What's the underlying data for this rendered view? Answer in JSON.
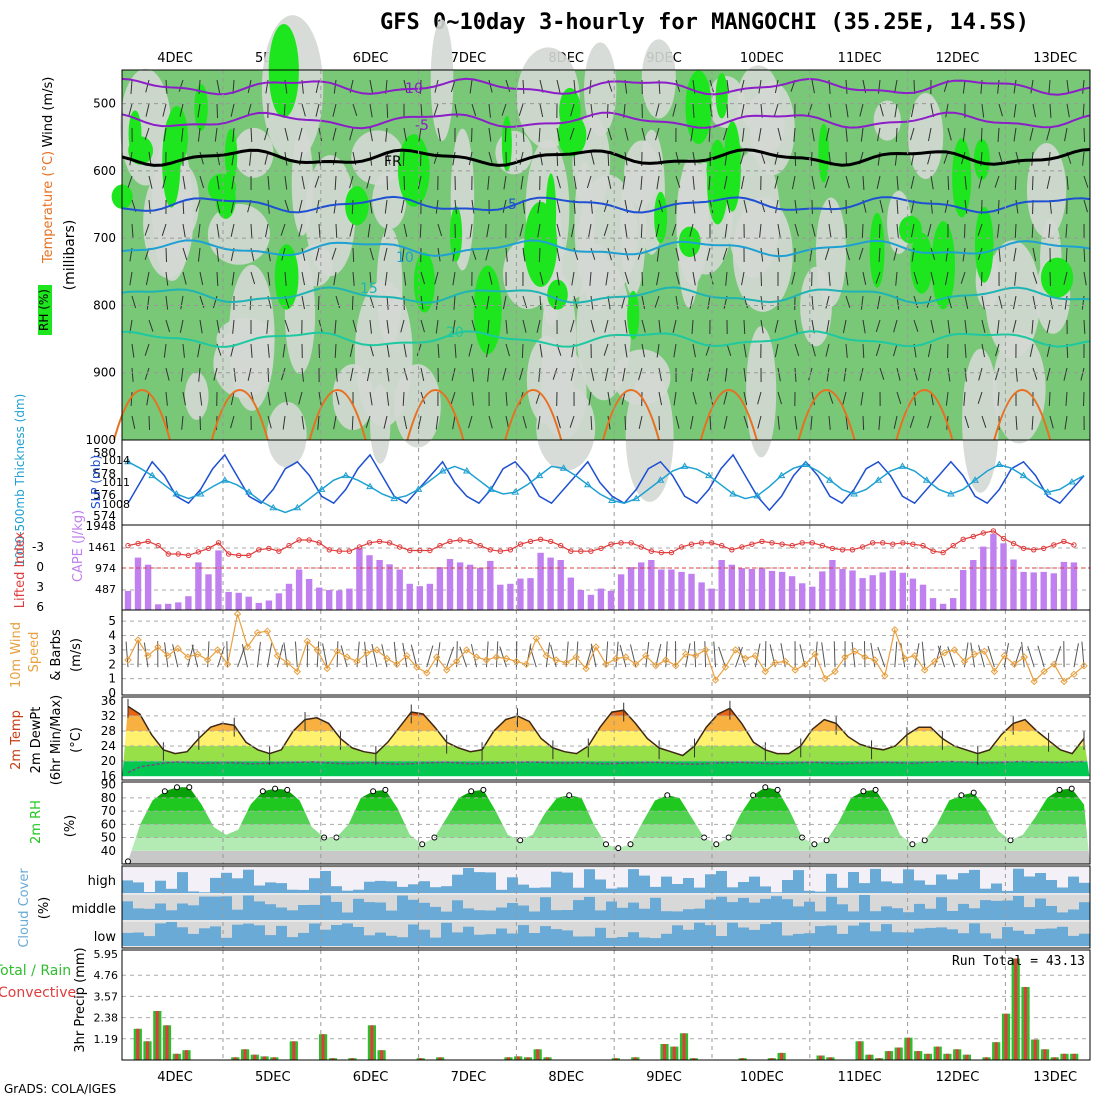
{
  "page": {
    "title": "GFS 0~10day 3-hourly for MANGOCHI (35.25E, 14.5S)",
    "credit": "GrADS: COLA/IGES"
  },
  "time_axis": {
    "labels": [
      "4DEC",
      "5DEC",
      "6DEC",
      "7DEC",
      "8DEC",
      "9DEC",
      "10DEC",
      "11DEC",
      "12DEC",
      "13DEC"
    ]
  },
  "colors": {
    "rh_light": "#d4d8d4",
    "rh_mid": "#78c878",
    "rh_bright": "#1ee61e",
    "temp_warm": "#e87020",
    "temp_blue": "#1e50d2",
    "temp_cyan": "#1ea0d2",
    "freeze": "#000000",
    "cold": "#8c1ec8",
    "cape": "#c080f0",
    "li": "#e03c3c",
    "wind10": "#e8a040",
    "rh2m": "#1ec81e",
    "cloud": "#6aaad6",
    "precip_total": "#2ebd2e",
    "precip_conv": "#e03c3c"
  },
  "chart_data": [
    {
      "type": "area",
      "panel": "upper-air",
      "ylabels": [
        "Wind (m/s)",
        "Temperature (°C)",
        "RH (%)",
        "(millibars)"
      ],
      "yticks": [
        500,
        600,
        700,
        800,
        900,
        1000
      ],
      "ylim": [
        450,
        1000
      ],
      "isotherm_labels": [
        "-10",
        "-5",
        "FR",
        "5",
        "10",
        "15",
        "20"
      ],
      "isotherms": [
        {
          "label": "-10",
          "p": 475
        },
        {
          "label": "-5",
          "p": 525
        },
        {
          "label": "FR",
          "p": 580
        },
        {
          "label": "5",
          "p": 650
        },
        {
          "label": "10",
          "p": 715
        },
        {
          "label": "15",
          "p": 785
        },
        {
          "label": "20",
          "p": 850
        }
      ]
    },
    {
      "type": "line",
      "panel": "slp-thickness",
      "ylabel_left": "1000-500mb Thickness (dm)",
      "ylabel_right": "SLP (mb)",
      "left_ticks": [
        "580",
        "578",
        "576",
        "574"
      ],
      "right_ticks": [
        "1014",
        "1011",
        "1008"
      ],
      "corner_labels": [
        "1948"
      ],
      "series": [
        {
          "values": [
            1008,
            1011,
            1014,
            1012,
            1009,
            1008,
            1010,
            1013,
            1015,
            1012,
            1009,
            1008,
            1010,
            1013,
            1014,
            1012,
            1009,
            1008,
            1010,
            1013,
            1015,
            1012,
            1009,
            1008,
            1010,
            1012,
            1014,
            1011,
            1009,
            1008,
            1010,
            1013,
            1014,
            1012,
            1009,
            1008,
            1010,
            1012,
            1014,
            1011,
            1009,
            1008,
            1010,
            1013,
            1014,
            1012,
            1009,
            1008,
            1010,
            1013,
            1015,
            1012,
            1009,
            1007,
            1009,
            1012,
            1014,
            1012,
            1009,
            1008,
            1010,
            1013,
            1014,
            1012,
            1009,
            1008,
            1010,
            1012,
            1014,
            1012,
            1009,
            1008,
            1010,
            1013,
            1014,
            1012,
            1009,
            1008,
            1010,
            1012
          ]
        },
        {
          "values": [
            579.5,
            578.8,
            578,
            577,
            576,
            575.5,
            576,
            576.8,
            577.5,
            577,
            576.2,
            575.2,
            574.5,
            574,
            574.5,
            575.5,
            576.5,
            577.5,
            578,
            577.5,
            576.8,
            576,
            575.5,
            575.8,
            576.5,
            577.5,
            578.5,
            579,
            578.5,
            577.5,
            576.5,
            576,
            576.2,
            577,
            578,
            579,
            578.8,
            578,
            577,
            576,
            575.3,
            575,
            575.5,
            576.5,
            577.5,
            578.5,
            579,
            578.7,
            578,
            577,
            576,
            575.5,
            575.8,
            576.8,
            578,
            578.8,
            579.2,
            578.5,
            577.5,
            576.5,
            576,
            576.5,
            577.5,
            578.5,
            579,
            578.5,
            577.5,
            576.5,
            576,
            576.5,
            577.5,
            578.5,
            579.2,
            578.8,
            578,
            577,
            576.2,
            576.5,
            577.3,
            578
          ]
        }
      ]
    },
    {
      "type": "bar",
      "panel": "cape-li",
      "ylabel_left": "Lifted Index",
      "ylabel_right": "CAPE (J/kg)",
      "left_ticks": [
        "-3",
        "0",
        "3",
        "6"
      ],
      "right_ticks": [
        "1461",
        "974",
        "487"
      ],
      "series": [
        {
          "name": "CAPE",
          "values": [
            400,
            1100,
            950,
            120,
            130,
            160,
            290,
            1000,
            750,
            1250,
            380,
            360,
            280,
            150,
            200,
            350,
            550,
            850,
            650,
            470,
            420,
            410,
            450,
            1300,
            1150,
            1050,
            960,
            850,
            550,
            500,
            550,
            900,
            1070,
            1000,
            950,
            880,
            1030,
            530,
            550,
            660,
            670,
            1200,
            1100,
            1050,
            680,
            420,
            320,
            450,
            400,
            750,
            900,
            1000,
            1050,
            850,
            850,
            800,
            760,
            580,
            450,
            1050,
            950,
            880,
            860,
            870,
            820,
            800,
            710,
            560,
            490,
            810,
            1050,
            860,
            830,
            670,
            730,
            790,
            830,
            780,
            660,
            530,
            250,
            130,
            250,
            840,
            1050,
            1330,
            1600,
            1400,
            1060,
            800,
            790,
            800,
            770,
            1010,
            1000
          ]
        },
        {
          "name": "Lifted Index",
          "values": [
            -3.2,
            -3.5,
            -3.8,
            -3.2,
            -2,
            -2,
            -1.8,
            -2.3,
            -2.8,
            -3.6,
            -2,
            -1.8,
            -1.8,
            -2.6,
            -2.8,
            -2.4,
            -3.2,
            -4,
            -4,
            -3.6,
            -2.6,
            -2.4,
            -2.4,
            -3,
            -3.6,
            -3.8,
            -3.6,
            -3,
            -2.5,
            -2.5,
            -2.5,
            -3.2,
            -3.8,
            -4,
            -3.8,
            -3.2,
            -2.6,
            -2.4,
            -2.6,
            -3.4,
            -3.8,
            -4.1,
            -3.8,
            -3.2,
            -2.4,
            -2.4,
            -2.4,
            -2.8,
            -3.4,
            -3.6,
            -3.6,
            -3,
            -2.4,
            -2.2,
            -2.2,
            -3,
            -3.4,
            -3.6,
            -3.6,
            -3.2,
            -2.6,
            -3,
            -3.4,
            -3.8,
            -3.6,
            -3.4,
            -3.2,
            -3.6,
            -3.6,
            -3.2,
            -2.8,
            -2.6,
            -2.6,
            -3,
            -3.6,
            -3.6,
            -3.4,
            -3.6,
            -3.4,
            -3.2,
            -2.4,
            -2.2,
            -3.2,
            -4.1,
            -4.5,
            -5,
            -5.3,
            -4.2,
            -3.5,
            -2.8,
            -2.6,
            -2.8,
            -3.3,
            -3.8,
            -3.3
          ]
        }
      ]
    },
    {
      "type": "line",
      "panel": "wind10m",
      "ylabel": "10m Wind Speed (m/s) & Barbs",
      "yticks": [
        "0",
        "1",
        "2",
        "3",
        "4",
        "5"
      ],
      "ylim": [
        0,
        5.5
      ],
      "series": [
        {
          "name": "Speed",
          "values": [
            2.3,
            3.7,
            2.6,
            3.2,
            2.6,
            3.1,
            2.5,
            2.7,
            2.3,
            3.0,
            2.0,
            5.5,
            3.2,
            4.2,
            4.3,
            2.6,
            2.1,
            1.5,
            3.6,
            3.0,
            1.7,
            2.9,
            2.5,
            2.2,
            2.8,
            3.0,
            2.4,
            2.0,
            2.6,
            1.8,
            1.4,
            2.5,
            1.6,
            2.2,
            3.0,
            2.5,
            2.3,
            2.5,
            2.4,
            2.2,
            2.0,
            3.8,
            2.6,
            2.3,
            2.1,
            2.5,
            1.7,
            3.2,
            2.0,
            2.4,
            2.5,
            2.0,
            2.6,
            1.9,
            2.3,
            1.9,
            2.7,
            2.6,
            3.0,
            0.9,
            1.8,
            3.0,
            2.4,
            2.6,
            1.5,
            2.1,
            2.2,
            1.6,
            2.0,
            2.7,
            1.0,
            1.5,
            2.5,
            2.9,
            2.5,
            2.3,
            1.2,
            4.4,
            2.4,
            2.6,
            1.6,
            2.2,
            2.8,
            3.0,
            2.2,
            2.7,
            2.9,
            1.5,
            2.6,
            2.0,
            2.5,
            0.8,
            1.5,
            2.0,
            0.8,
            1.3,
            1.9
          ]
        }
      ]
    },
    {
      "type": "area",
      "panel": "temp2m",
      "ylabel": "2m Temp 2m DewPt (6hr Min/Max) (°C)",
      "yticks": [
        "16",
        "20",
        "24",
        "28",
        "32",
        "36"
      ],
      "ylim": [
        15,
        37
      ],
      "series": [
        {
          "name": "Temperature",
          "values": [
            34.5,
            32.5,
            27,
            23,
            22,
            22.5,
            26,
            29,
            30,
            29.5,
            25,
            23,
            22,
            23,
            28,
            31,
            31.5,
            30,
            26,
            23.5,
            22.5,
            22,
            25,
            29,
            33,
            32.5,
            29,
            25,
            23.5,
            22.5,
            23,
            28,
            31,
            32,
            30.5,
            26,
            23.5,
            22.5,
            22,
            24,
            29,
            33,
            33.5,
            30,
            26,
            23.5,
            22.5,
            21.5,
            24,
            29,
            32.5,
            34,
            30,
            25,
            23,
            22,
            22,
            24,
            28.5,
            31,
            30,
            26.5,
            24.5,
            23.5,
            23,
            24,
            27,
            29,
            29,
            26,
            24,
            23,
            22,
            23,
            27,
            30,
            31,
            28,
            25.5,
            23,
            22,
            26
          ]
        },
        {
          "name": "DewPt",
          "values": [
            17,
            18.5,
            19,
            19.5,
            19.8,
            19.6,
            19.4,
            19.5,
            19.6,
            19.5,
            19.3,
            19.4,
            19.5,
            19.6,
            19.7,
            19.8,
            19.6,
            19.4,
            19.3,
            19.5,
            19.6,
            19.4,
            19.2,
            19.3,
            19.5,
            19.6,
            19.7,
            19.5,
            19.3,
            19.4,
            19.5,
            19.6,
            19.7,
            19.8,
            19.6,
            19.5,
            19.5,
            19.6,
            19.4,
            19.3,
            19.4,
            19.5,
            19.6,
            19.7,
            19.5,
            19.3,
            19.2,
            19.3,
            19.5,
            19.6,
            19.7,
            19.5,
            19.4,
            19.3,
            19.4,
            19.6,
            19.7,
            19.5,
            19.3,
            19.4,
            19.5,
            19.6,
            19.7,
            19.5,
            19.4,
            19.6,
            19.8,
            19.9,
            19.8,
            19.6,
            19.5,
            19.6,
            19.8,
            19.9,
            19.8,
            19.7,
            19.6,
            19.8,
            19.9
          ]
        }
      ]
    },
    {
      "type": "area",
      "panel": "rh2m",
      "ylabel": "2m RH (%)",
      "yticks": [
        "40",
        "50",
        "60",
        "70",
        "80",
        "90"
      ],
      "ylim": [
        30,
        92
      ],
      "series": [
        {
          "name": "RH",
          "values": [
            32,
            60,
            78,
            85,
            88,
            88,
            75,
            58,
            52,
            56,
            75,
            85,
            87,
            86,
            78,
            58,
            50,
            50,
            60,
            80,
            85,
            86,
            72,
            52,
            45,
            50,
            65,
            80,
            85,
            86,
            70,
            52,
            48,
            52,
            68,
            80,
            82,
            80,
            60,
            45,
            42,
            45,
            62,
            78,
            82,
            80,
            65,
            50,
            45,
            50,
            68,
            82,
            88,
            86,
            70,
            50,
            45,
            48,
            62,
            80,
            85,
            86,
            72,
            52,
            45,
            48,
            60,
            78,
            82,
            84,
            72,
            55,
            48,
            52,
            65,
            80,
            86,
            87,
            75
          ]
        }
      ]
    },
    {
      "type": "bar",
      "panel": "cloud",
      "ylabel": "Cloud Cover (%)",
      "row_labels": [
        "high",
        "middle",
        "low"
      ]
    },
    {
      "type": "bar",
      "panel": "precip",
      "ylabel": "3hr Precip (mm)",
      "side_label_total": "Total / Rain",
      "side_label_conv": "Convective",
      "run_total_text": "Run Total = 43.13",
      "yticks": [
        "1.19",
        "2.38",
        "3.57",
        "4.76",
        "5.95"
      ],
      "ylim": [
        0,
        5.95
      ],
      "series": [
        {
          "name": "Total",
          "values": [
            0,
            1.75,
            1.05,
            2.75,
            1.95,
            0.35,
            0.55,
            0,
            0,
            0,
            0,
            0.15,
            0.6,
            0.3,
            0.2,
            0.15,
            0,
            1.05,
            0,
            0,
            1.45,
            0.1,
            0,
            0.1,
            0,
            1.95,
            0.55,
            0,
            0,
            0,
            0.1,
            0,
            0.15,
            0,
            0,
            0,
            0,
            0,
            0,
            0.15,
            0.2,
            0.15,
            0.6,
            0.15,
            0,
            0,
            0,
            0,
            0,
            0,
            0.1,
            0,
            0.15,
            0,
            0,
            0.9,
            0.75,
            1.5,
            0.1,
            0,
            0,
            0,
            0,
            0.1,
            0,
            0,
            0.1,
            0.4,
            0,
            0,
            0,
            0.25,
            0.15,
            0,
            0,
            1.05,
            0.3,
            0.1,
            0.5,
            0.7,
            1.25,
            0.5,
            0.35,
            0.75,
            0.35,
            0.6,
            0.3,
            0,
            0.15,
            1.0,
            2.6,
            5.7,
            4.1,
            1.15,
            0.6,
            0.15,
            0.35,
            0.35
          ]
        },
        {
          "name": "Convective",
          "values": [
            0,
            1.75,
            1.05,
            2.75,
            1.95,
            0.35,
            0.55,
            0,
            0,
            0,
            0,
            0.15,
            0.6,
            0.3,
            0.2,
            0.15,
            0,
            1.05,
            0,
            0,
            1.45,
            0.1,
            0,
            0.1,
            0,
            1.95,
            0.55,
            0,
            0,
            0,
            0.1,
            0,
            0.15,
            0,
            0,
            0,
            0,
            0,
            0,
            0.15,
            0.2,
            0.15,
            0.6,
            0.15,
            0,
            0,
            0,
            0,
            0,
            0,
            0.1,
            0,
            0.15,
            0,
            0,
            0.9,
            0.75,
            1.5,
            0.1,
            0,
            0,
            0,
            0,
            0.1,
            0,
            0,
            0.1,
            0.4,
            0,
            0,
            0,
            0.25,
            0.15,
            0,
            0,
            1.05,
            0.3,
            0.1,
            0.5,
            0.7,
            1.25,
            0.5,
            0.35,
            0.75,
            0.35,
            0.6,
            0.3,
            0,
            0.15,
            1.0,
            2.6,
            5.7,
            4.1,
            1.15,
            0.6,
            0.15,
            0.35,
            0.35
          ]
        }
      ]
    }
  ]
}
